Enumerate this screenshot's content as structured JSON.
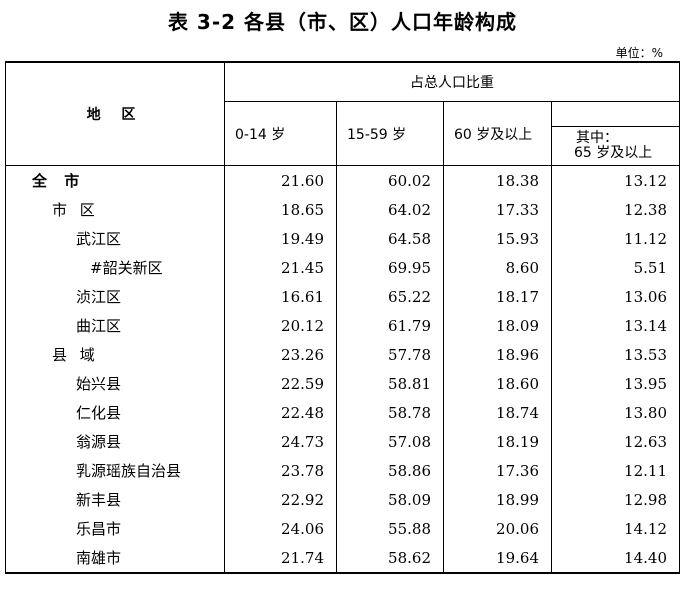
{
  "title": "表 3-2   各县（市、区）人口年龄构成",
  "unit": "单位：%",
  "header": {
    "region": "地 区",
    "group": "占总人口比重",
    "col1": "0-14 岁",
    "col2": "15-59 岁",
    "col3": "60 岁及以上",
    "col4_line1": "其中：",
    "col4_line2": "65 岁及以上"
  },
  "rows": [
    {
      "name": "全 市",
      "level": 0,
      "v1": "21.60",
      "v2": "60.02",
      "v3": "18.38",
      "v4": "13.12"
    },
    {
      "name": "市 区",
      "level": 1,
      "v1": "18.65",
      "v2": "64.02",
      "v3": "17.33",
      "v4": "12.38"
    },
    {
      "name": "武江区",
      "level": 2,
      "v1": "19.49",
      "v2": "64.58",
      "v3": "15.93",
      "v4": "11.12"
    },
    {
      "name": "#韶关新区",
      "level": 3,
      "v1": "21.45",
      "v2": "69.95",
      "v3": "8.60",
      "v4": "5.51"
    },
    {
      "name": "浈江区",
      "level": 2,
      "v1": "16.61",
      "v2": "65.22",
      "v3": "18.17",
      "v4": "13.06"
    },
    {
      "name": "曲江区",
      "level": 2,
      "v1": "20.12",
      "v2": "61.79",
      "v3": "18.09",
      "v4": "13.14"
    },
    {
      "name": "县 域",
      "level": 1,
      "v1": "23.26",
      "v2": "57.78",
      "v3": "18.96",
      "v4": "13.53"
    },
    {
      "name": "始兴县",
      "level": 2,
      "v1": "22.59",
      "v2": "58.81",
      "v3": "18.60",
      "v4": "13.95"
    },
    {
      "name": "仁化县",
      "level": 2,
      "v1": "22.48",
      "v2": "58.78",
      "v3": "18.74",
      "v4": "13.80"
    },
    {
      "name": "翁源县",
      "level": 2,
      "v1": "24.73",
      "v2": "57.08",
      "v3": "18.19",
      "v4": "12.63"
    },
    {
      "name": "乳源瑶族自治县",
      "level": 2,
      "v1": "23.78",
      "v2": "58.86",
      "v3": "17.36",
      "v4": "12.11"
    },
    {
      "name": "新丰县",
      "level": 2,
      "v1": "22.92",
      "v2": "58.09",
      "v3": "18.99",
      "v4": "12.98"
    },
    {
      "name": "乐昌市",
      "level": 2,
      "v1": "24.06",
      "v2": "55.88",
      "v3": "20.06",
      "v4": "14.12"
    },
    {
      "name": "南雄市",
      "level": 2,
      "v1": "21.74",
      "v2": "58.62",
      "v3": "19.64",
      "v4": "14.40"
    }
  ]
}
